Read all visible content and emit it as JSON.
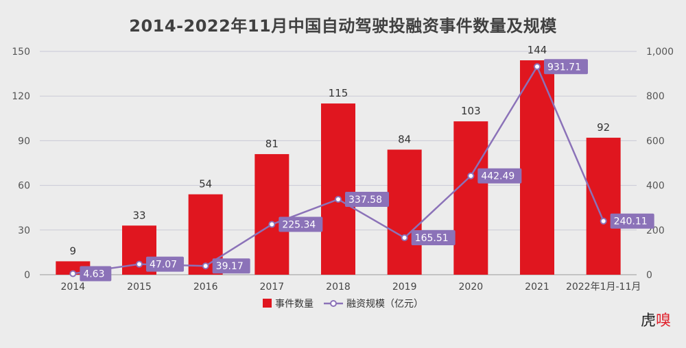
{
  "chart_data": {
    "type": "bar",
    "title": "2014-2022年11月中国自动驾驶投融资事件数量及规模",
    "categories": [
      "2014",
      "2015",
      "2016",
      "2017",
      "2018",
      "2019",
      "2020",
      "2021",
      "2022年1月-11月"
    ],
    "series": [
      {
        "name": "事件数量",
        "type": "bar",
        "axis": "left",
        "color": "#e0161f",
        "values": [
          9,
          33,
          54,
          81,
          115,
          84,
          103,
          144,
          92
        ]
      },
      {
        "name": "融资规模（亿元）",
        "type": "line",
        "axis": "right",
        "color": "#8b72b8",
        "values": [
          4.63,
          47.07,
          39.17,
          225.34,
          337.58,
          165.51,
          442.49,
          931.71,
          240.11
        ]
      }
    ],
    "left_axis": {
      "ylim": [
        0,
        150
      ],
      "ticks": [
        0,
        30,
        60,
        90,
        120,
        150
      ],
      "tick_labels": [
        "0",
        "30",
        "60",
        "90",
        "120",
        "150"
      ]
    },
    "right_axis": {
      "ylim": [
        0,
        1000
      ],
      "ticks": [
        0,
        200,
        400,
        600,
        800,
        1000
      ],
      "tick_labels": [
        "0",
        "200",
        "400",
        "600",
        "800",
        "1,000"
      ]
    },
    "grid": true,
    "legend": "bottom"
  },
  "watermark": "虎嗅"
}
